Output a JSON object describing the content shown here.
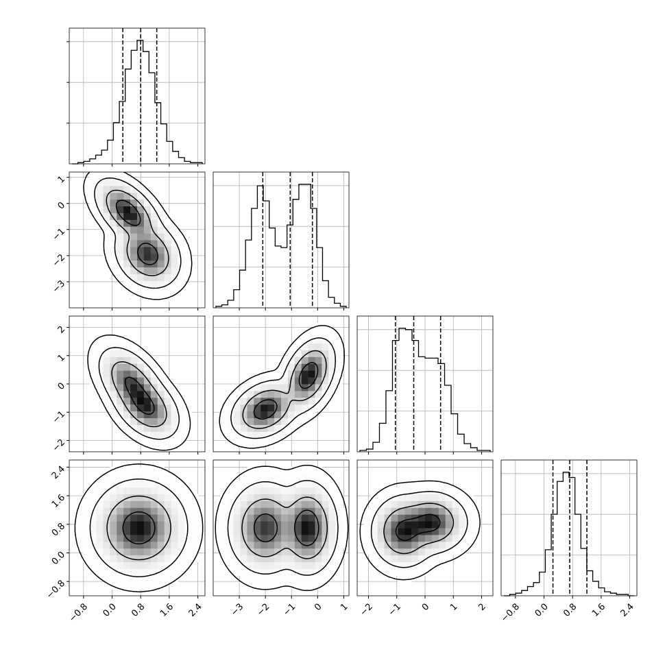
{
  "chart_data": {
    "type": "corner",
    "parameters": [
      {
        "name": "",
        "range": [
          -1.2,
          2.6
        ],
        "ticks": [
          "−0.8",
          "0.0",
          "0.8",
          "1.6",
          "2.4"
        ],
        "tick_values": [
          -0.8,
          0.0,
          0.8,
          1.6,
          2.4
        ],
        "quantiles": [
          0.3,
          0.8,
          1.25
        ],
        "hist": [
          0,
          1,
          2,
          4,
          7,
          11,
          19,
          33,
          50,
          76,
          91,
          99,
          90,
          73,
          49,
          32,
          18,
          10,
          5,
          2,
          1,
          1
        ]
      },
      {
        "name": "",
        "range": [
          -4.0,
          1.2
        ],
        "ticks": [
          "−3",
          "−2",
          "−1",
          "0",
          "1"
        ],
        "tick_values": [
          -3,
          -2,
          -1,
          0,
          1
        ],
        "quantiles": [
          -2.1,
          -1.05,
          -0.2
        ],
        "hist": [
          1,
          2,
          5,
          12,
          25,
          45,
          66,
          81,
          71,
          53,
          41,
          40,
          55,
          72,
          82,
          82,
          66,
          40,
          18,
          7,
          3,
          1
        ]
      },
      {
        "name": "",
        "range": [
          -2.4,
          2.4
        ],
        "ticks": [
          "−2",
          "−1",
          "0",
          "1",
          "2"
        ],
        "tick_values": [
          -2,
          -1,
          0,
          1,
          2
        ],
        "quantiles": [
          -1.05,
          -0.4,
          0.55
        ],
        "hist": [
          1,
          2,
          7,
          21,
          45,
          82,
          91,
          90,
          82,
          70,
          69,
          69,
          65,
          49,
          28,
          13,
          6,
          3,
          1,
          1
        ]
      },
      {
        "name": "",
        "range": [
          -1.2,
          2.6
        ],
        "ticks": [
          "−0.8",
          "0.0",
          "0.8",
          "1.6",
          "2.4"
        ],
        "tick_values": [
          -0.8,
          0.0,
          0.8,
          1.6,
          2.4
        ],
        "quantiles": [
          0.25,
          0.72,
          1.2
        ],
        "hist": [
          0,
          1,
          2,
          4,
          7,
          10,
          18,
          35,
          62,
          87,
          94,
          90,
          62,
          36,
          19,
          11,
          6,
          3,
          2,
          1,
          1,
          0
        ]
      }
    ],
    "pairs": [
      {
        "row": 1,
        "col": 0,
        "blobs": [
          {
            "cx": 0.45,
            "cy": -0.35,
            "sx": 0.32,
            "sy": 0.45,
            "rho": -0.55,
            "w": 0.5
          },
          {
            "cx": 1.0,
            "cy": -1.95,
            "sx": 0.32,
            "sy": 0.45,
            "rho": -0.2,
            "w": 0.5
          }
        ]
      },
      {
        "row": 2,
        "col": 0,
        "blobs": [
          {
            "cx": 0.55,
            "cy": 0.0,
            "sx": 0.32,
            "sy": 0.45,
            "rho": -0.5,
            "w": 0.5
          },
          {
            "cx": 0.95,
            "cy": -0.8,
            "sx": 0.32,
            "sy": 0.4,
            "rho": -0.4,
            "w": 0.5
          }
        ]
      },
      {
        "row": 2,
        "col": 1,
        "blobs": [
          {
            "cx": -2.0,
            "cy": -0.9,
            "sx": 0.45,
            "sy": 0.35,
            "rho": 0.3,
            "w": 0.5
          },
          {
            "cx": -0.35,
            "cy": 0.3,
            "sx": 0.35,
            "sy": 0.45,
            "rho": 0.4,
            "w": 0.5
          }
        ]
      },
      {
        "row": 3,
        "col": 0,
        "blobs": [
          {
            "cx": 0.75,
            "cy": 0.7,
            "sx": 0.45,
            "sy": 0.45,
            "rho": 0.0,
            "w": 1.0
          }
        ]
      },
      {
        "row": 3,
        "col": 1,
        "blobs": [
          {
            "cx": -2.0,
            "cy": 0.7,
            "sx": 0.5,
            "sy": 0.45,
            "rho": 0.0,
            "w": 0.5
          },
          {
            "cx": -0.4,
            "cy": 0.7,
            "sx": 0.4,
            "sy": 0.45,
            "rho": 0.0,
            "w": 0.5
          }
        ]
      },
      {
        "row": 3,
        "col": 2,
        "blobs": [
          {
            "cx": -0.75,
            "cy": 0.6,
            "sx": 0.4,
            "sy": 0.35,
            "rho": 0.0,
            "w": 0.5
          },
          {
            "cx": 0.2,
            "cy": 0.85,
            "sx": 0.45,
            "sy": 0.3,
            "rho": 0.0,
            "w": 0.5
          }
        ]
      }
    ],
    "contour_levels": [
      0.39,
      0.86,
      0.99,
      0.99966
    ],
    "grid": true
  }
}
